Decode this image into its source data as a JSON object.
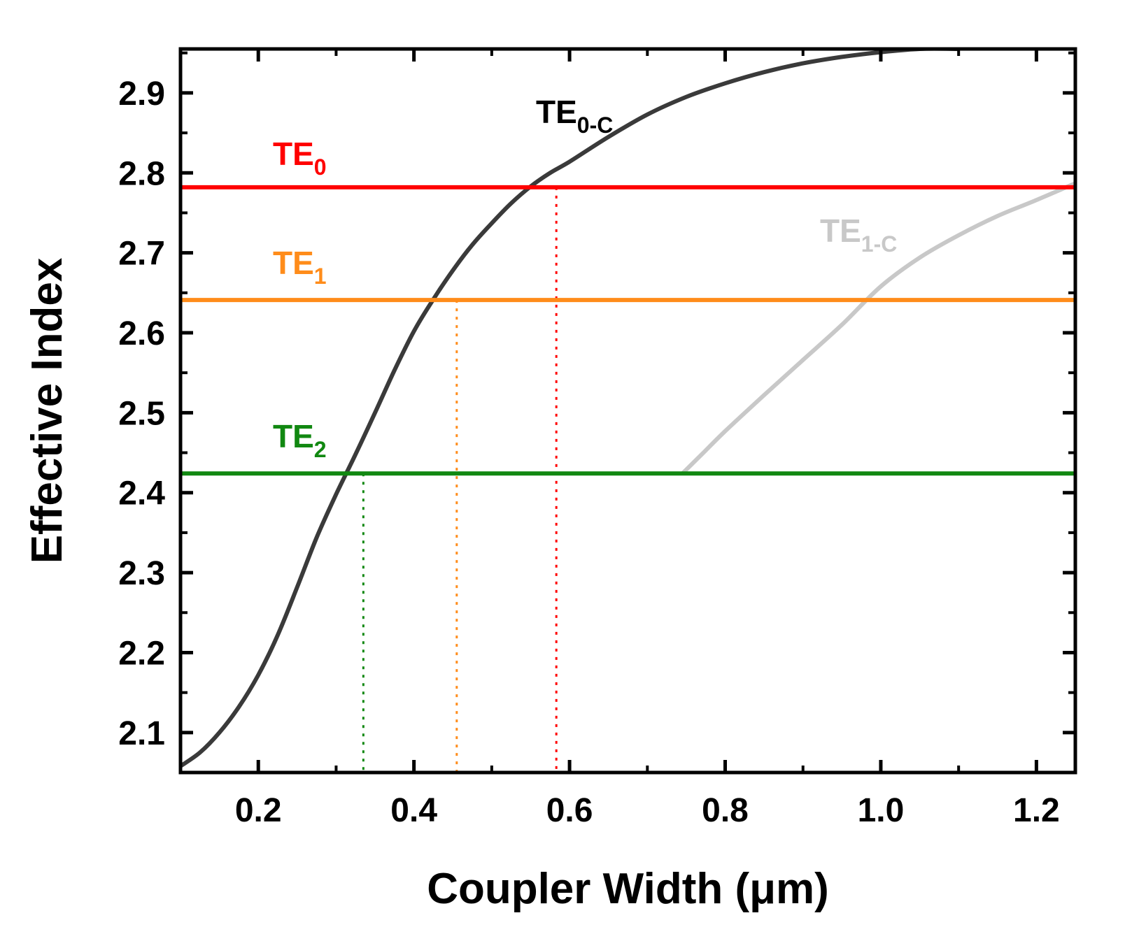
{
  "chart_data": {
    "type": "line",
    "xlabel": "Coupler Width (μm)",
    "ylabel": "Effective Index",
    "xlim": [
      0.1,
      1.25
    ],
    "ylim": [
      2.05,
      2.955
    ],
    "x_ticks": [
      0.2,
      0.4,
      0.6,
      0.8,
      1.0,
      1.2
    ],
    "x_tick_labels": [
      "0.2",
      "0.4",
      "0.6",
      "0.8",
      "1.0",
      "1.2"
    ],
    "y_ticks": [
      2.1,
      2.2,
      2.3,
      2.4,
      2.5,
      2.6,
      2.7,
      2.8,
      2.9
    ],
    "y_tick_labels": [
      "2.1",
      "2.2",
      "2.3",
      "2.4",
      "2.5",
      "2.6",
      "2.7",
      "2.8",
      "2.9"
    ],
    "grid": false,
    "horizontal_lines": [
      {
        "label_main": "TE",
        "label_sub": "0",
        "y": 2.782,
        "color": "#ff0000"
      },
      {
        "label_main": "TE",
        "label_sub": "1",
        "y": 2.641,
        "color": "#ff8c1a"
      },
      {
        "label_main": "TE",
        "label_sub": "2",
        "y": 2.424,
        "color": "#118811"
      }
    ],
    "series": [
      {
        "label_main": "TE",
        "label_sub": "0-C",
        "color": "#3a3a3a",
        "x": [
          0.1,
          0.125,
          0.15,
          0.175,
          0.2,
          0.225,
          0.25,
          0.275,
          0.3,
          0.325,
          0.35,
          0.375,
          0.4,
          0.425,
          0.45,
          0.475,
          0.5,
          0.525,
          0.55,
          0.575,
          0.6,
          0.65,
          0.7,
          0.75,
          0.8,
          0.85,
          0.9,
          0.95,
          1.0,
          1.05,
          1.1
        ],
        "y": [
          2.058,
          2.075,
          2.1,
          2.132,
          2.172,
          2.222,
          2.282,
          2.344,
          2.398,
          2.448,
          2.5,
          2.553,
          2.602,
          2.642,
          2.678,
          2.71,
          2.737,
          2.762,
          2.783,
          2.8,
          2.814,
          2.845,
          2.873,
          2.895,
          2.912,
          2.926,
          2.937,
          2.945,
          2.951,
          2.955,
          2.955
        ]
      },
      {
        "label_main": "TE",
        "label_sub": "1-C",
        "color": "#c8c8c8",
        "x": [
          0.745,
          0.77,
          0.8,
          0.85,
          0.9,
          0.95,
          1.0,
          1.05,
          1.1,
          1.15,
          1.2,
          1.25
        ],
        "y": [
          2.424,
          2.448,
          2.477,
          2.522,
          2.566,
          2.61,
          2.658,
          2.694,
          2.722,
          2.746,
          2.766,
          2.787
        ]
      }
    ],
    "crossing_markers": [
      {
        "x": 0.335,
        "y": 2.424,
        "color": "#118811"
      },
      {
        "x": 0.455,
        "y": 2.641,
        "color": "#ff8c1a"
      },
      {
        "x": 0.583,
        "y": 2.782,
        "color": "#ff0000"
      }
    ]
  }
}
